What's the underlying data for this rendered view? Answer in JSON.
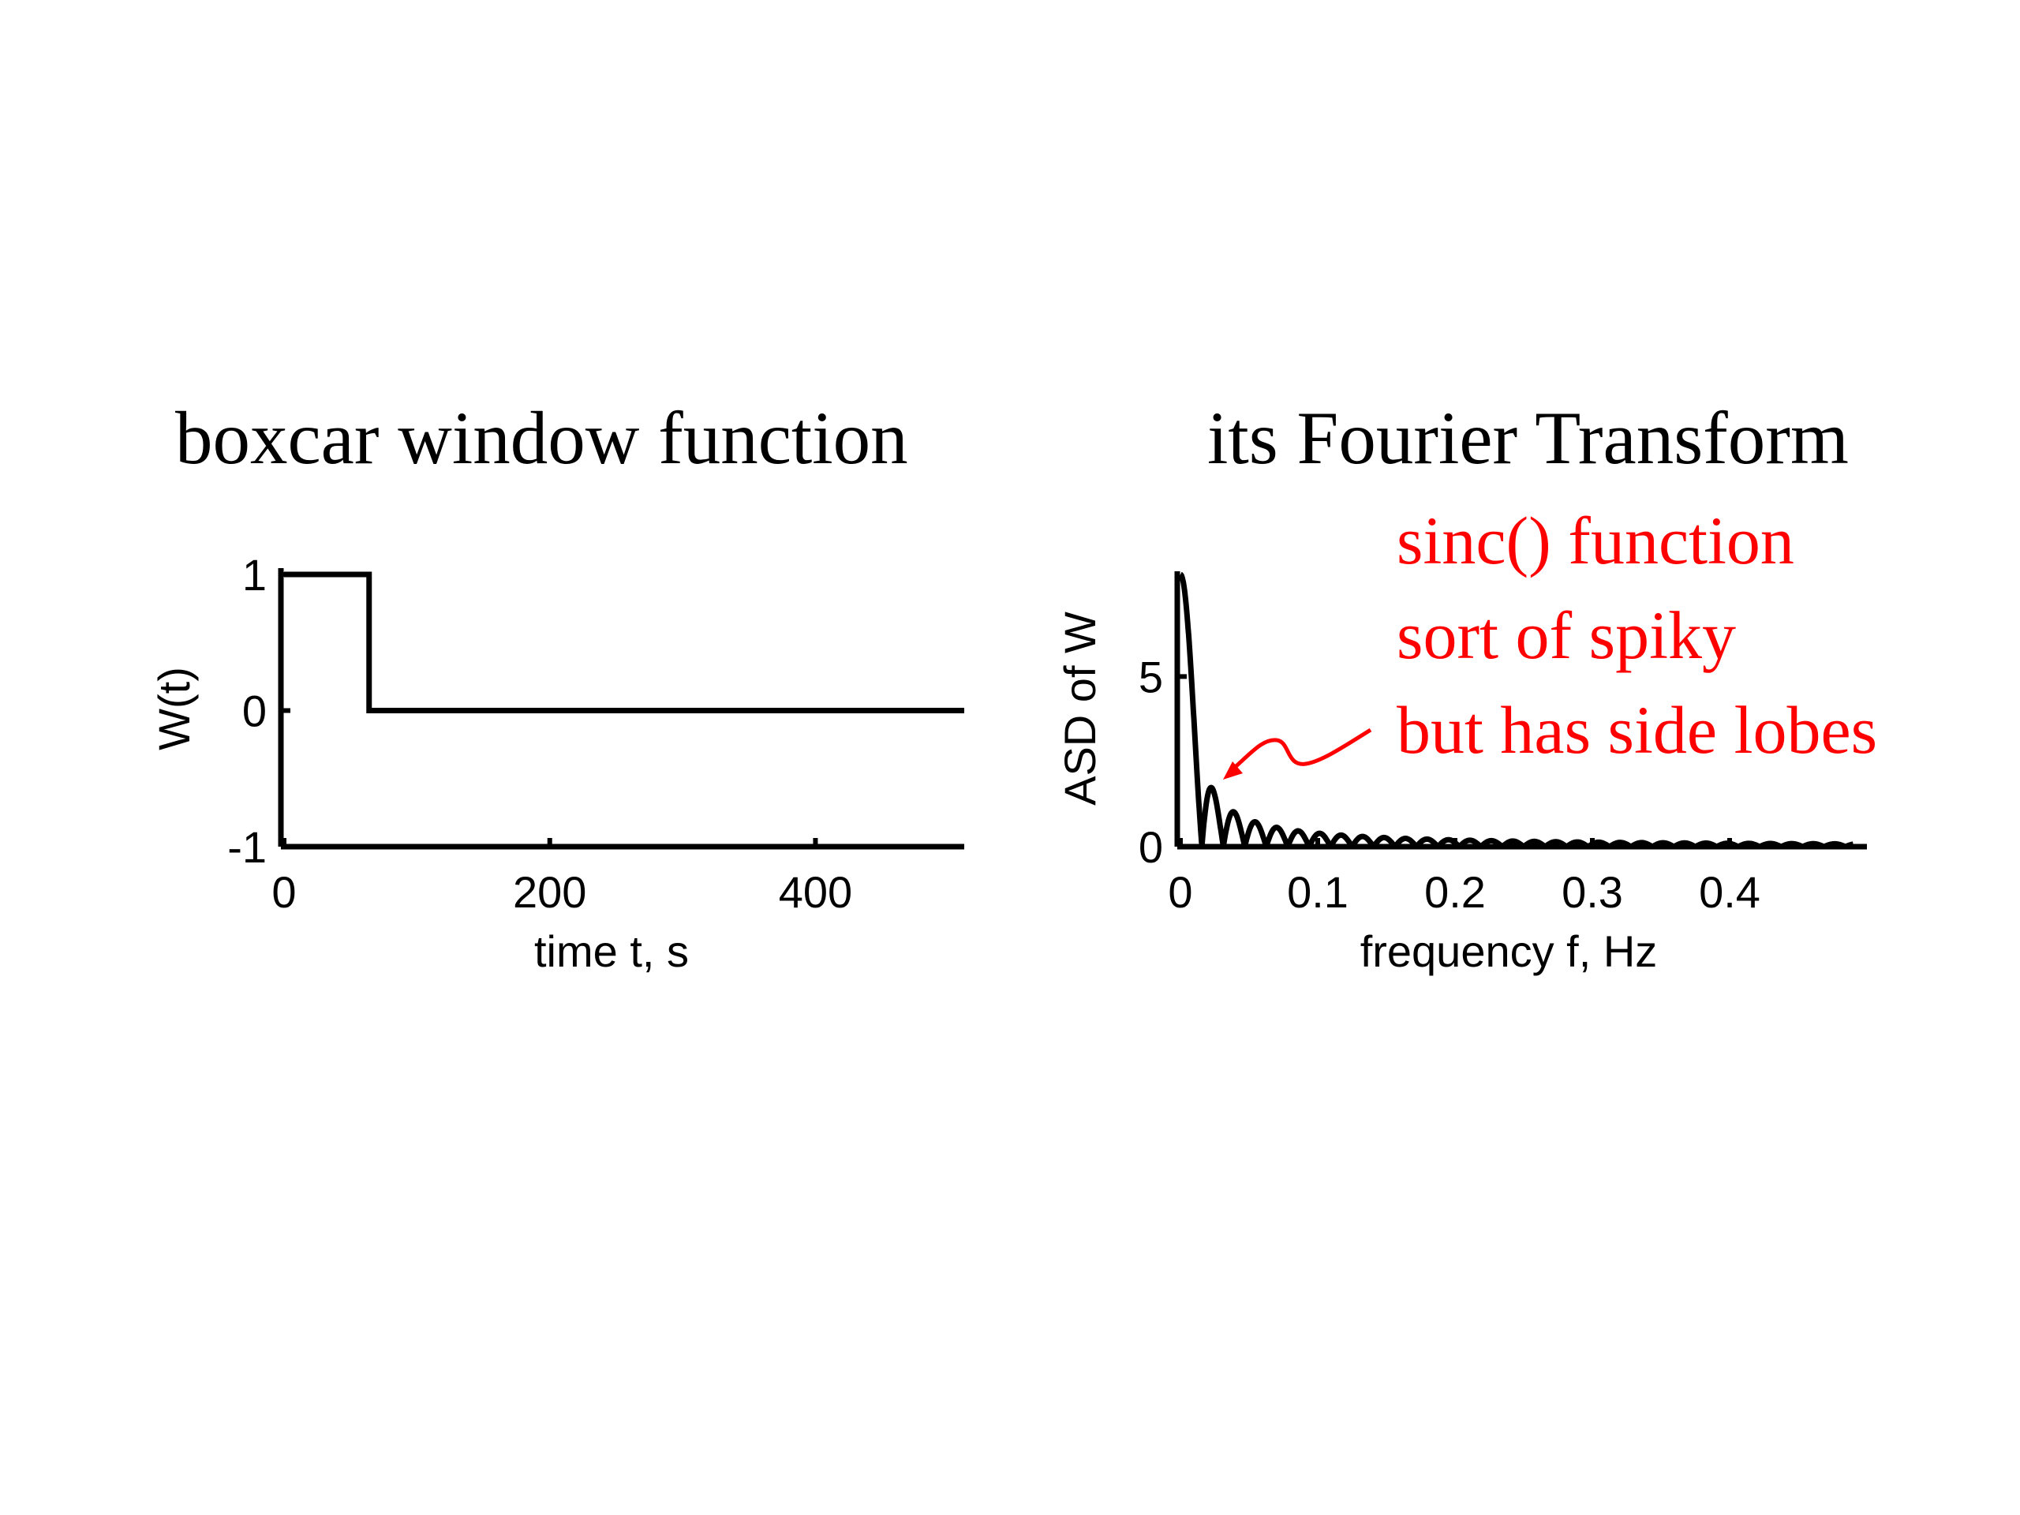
{
  "slide": {
    "left_title": "boxcar window function",
    "right_title": "its Fourier Transform",
    "annotation_lines": [
      "sinc() function",
      "sort of spiky",
      "but has side lobes"
    ],
    "annotation_color": "#ff0000"
  },
  "chart_data": [
    {
      "type": "line",
      "title": "",
      "xlabel": "time t, s",
      "ylabel": "W(t)",
      "xlim": [
        0,
        512
      ],
      "ylim": [
        -1,
        1
      ],
      "xticks": [
        "0",
        "200",
        "400"
      ],
      "yticks": [
        "-1",
        "0",
        "1"
      ],
      "series": [
        {
          "x": [
            0,
            64,
            64,
            512
          ],
          "y": [
            1,
            1,
            0,
            0
          ]
        }
      ],
      "line_color": "#000000"
    },
    {
      "type": "line",
      "title": "",
      "xlabel": "frequency f, Hz",
      "ylabel": "ASD of W",
      "xlim": [
        0,
        0.5
      ],
      "ylim": [
        0,
        8
      ],
      "xticks": [
        "0",
        "0.1",
        "0.2",
        "0.3",
        "0.4"
      ],
      "yticks": [
        "0",
        "5"
      ],
      "series": [
        {
          "function": "abs_sinc",
          "peak": 8,
          "first_null": 0.015625,
          "x_max": 0.49
        }
      ],
      "line_color": "#000000"
    }
  ]
}
